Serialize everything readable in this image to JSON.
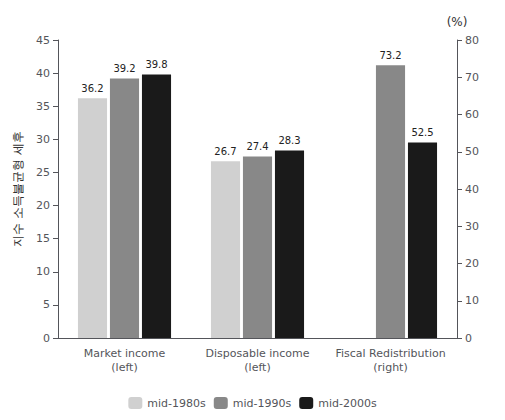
{
  "chart_data": {
    "type": "bar",
    "categories": [
      "Market income\n(left)",
      "Disposable income\n(left)",
      "Fiscal Redistribution\n(right)"
    ],
    "series": [
      {
        "name": "mid-1980s",
        "color": "#d0d0d0",
        "values": [
          36.2,
          26.7,
          null
        ]
      },
      {
        "name": "mid-1990s",
        "color": "#888888",
        "values": [
          39.2,
          27.4,
          null
        ]
      },
      {
        "name": "mid-2000s",
        "color": "#1a1a1a",
        "values": [
          39.8,
          28.3,
          null
        ]
      },
      {
        "name": "mid-1980s",
        "color": "#d0d0d0",
        "values": [
          null,
          null,
          null
        ],
        "axis": "y2"
      },
      {
        "name": "mid-1990s",
        "color": "#888888",
        "values": [
          null,
          null,
          73.2
        ],
        "axis": "y2"
      },
      {
        "name": "mid-2000s",
        "color": "#1a1a1a",
        "values": [
          null,
          null,
          52.5
        ],
        "axis": "y2"
      }
    ],
    "ylabel": "지수 소득불균형 세후",
    "y2label": "(%)",
    "ylim": [
      0,
      45
    ],
    "yticks": [
      0,
      5,
      10,
      15,
      20,
      25,
      30,
      35,
      40,
      45
    ],
    "y2lim": [
      0,
      80
    ],
    "y2ticks": [
      0,
      10,
      20,
      30,
      40,
      50,
      60,
      70,
      80
    ],
    "grid": false,
    "legend": "bottom",
    "data_labels": true
  }
}
